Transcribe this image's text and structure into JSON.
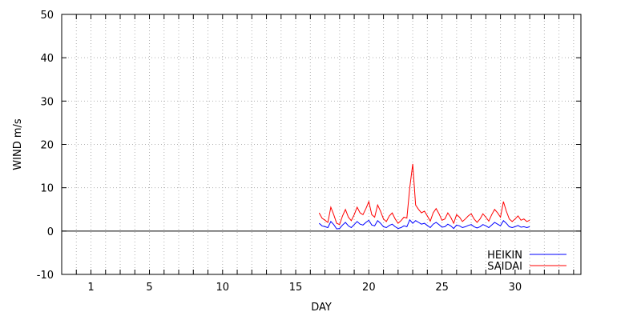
{
  "chart_data": {
    "type": "line",
    "xlabel": "DAY",
    "ylabel": "WIND m/s",
    "xlim": [
      -1,
      34.5
    ],
    "ylim": [
      -10,
      50
    ],
    "x_ticks": [
      1,
      5,
      10,
      15,
      20,
      25,
      30
    ],
    "y_ticks": [
      -10,
      0,
      10,
      20,
      30,
      40,
      50
    ],
    "grid": true,
    "zero_line": true,
    "legend_position": "bottom-right",
    "series": [
      {
        "name": "HEIKIN",
        "color": "#0000ff",
        "x": [
          16.6,
          16.8,
          17.0,
          17.2,
          17.4,
          17.6,
          17.8,
          18.0,
          18.2,
          18.4,
          18.6,
          18.8,
          19.0,
          19.2,
          19.4,
          19.6,
          19.8,
          20.0,
          20.2,
          20.4,
          20.6,
          20.8,
          21.0,
          21.2,
          21.4,
          21.6,
          21.8,
          22.0,
          22.2,
          22.4,
          22.6,
          22.8,
          23.0,
          23.2,
          23.4,
          23.6,
          23.8,
          24.0,
          24.2,
          24.4,
          24.6,
          24.8,
          25.0,
          25.2,
          25.4,
          25.6,
          25.8,
          26.0,
          26.2,
          26.4,
          26.6,
          26.8,
          27.0,
          27.2,
          27.4,
          27.6,
          27.8,
          28.0,
          28.2,
          28.4,
          28.6,
          28.8,
          29.0,
          29.2,
          29.4,
          29.6,
          29.8,
          30.0,
          30.2,
          30.4,
          30.6,
          30.8,
          31.0
        ],
        "y": [
          1.8,
          1.2,
          1.0,
          0.8,
          2.2,
          1.5,
          0.5,
          0.6,
          1.4,
          2.0,
          1.2,
          0.8,
          1.5,
          2.2,
          1.6,
          1.4,
          2.0,
          2.5,
          1.4,
          1.2,
          2.4,
          1.8,
          1.0,
          0.8,
          1.3,
          1.6,
          1.0,
          0.6,
          0.8,
          1.2,
          1.0,
          2.6,
          1.8,
          2.4,
          2.0,
          1.6,
          1.8,
          1.3,
          0.8,
          1.6,
          2.0,
          1.5,
          0.9,
          1.0,
          1.6,
          1.2,
          0.6,
          1.4,
          1.2,
          0.8,
          1.0,
          1.3,
          1.5,
          1.0,
          0.7,
          1.0,
          1.5,
          1.2,
          0.8,
          1.4,
          2.0,
          1.6,
          1.2,
          2.4,
          1.8,
          1.0,
          0.8,
          1.0,
          1.3,
          0.9,
          1.0,
          0.8,
          1.0
        ]
      },
      {
        "name": "SAIDAI",
        "color": "#ff0000",
        "x": [
          16.6,
          16.8,
          17.0,
          17.2,
          17.4,
          17.6,
          17.8,
          18.0,
          18.2,
          18.4,
          18.6,
          18.8,
          19.0,
          19.2,
          19.4,
          19.6,
          19.8,
          20.0,
          20.2,
          20.4,
          20.6,
          20.8,
          21.0,
          21.2,
          21.4,
          21.6,
          21.8,
          22.0,
          22.2,
          22.4,
          22.6,
          22.8,
          23.0,
          23.2,
          23.4,
          23.6,
          23.8,
          24.0,
          24.2,
          24.4,
          24.6,
          24.8,
          25.0,
          25.2,
          25.4,
          25.6,
          25.8,
          26.0,
          26.2,
          26.4,
          26.6,
          26.8,
          27.0,
          27.2,
          27.4,
          27.6,
          27.8,
          28.0,
          28.2,
          28.4,
          28.6,
          28.8,
          29.0,
          29.2,
          29.4,
          29.6,
          29.8,
          30.0,
          30.2,
          30.4,
          30.6,
          30.8,
          31.0
        ],
        "y": [
          4.2,
          3.0,
          2.5,
          2.0,
          5.5,
          3.8,
          1.8,
          1.5,
          3.5,
          5.0,
          3.2,
          2.4,
          3.8,
          5.5,
          4.2,
          3.8,
          5.2,
          6.8,
          3.8,
          3.2,
          6.0,
          4.6,
          2.8,
          2.2,
          3.5,
          4.2,
          2.8,
          1.8,
          2.4,
          3.2,
          3.0,
          10.0,
          15.5,
          6.0,
          5.0,
          4.2,
          4.6,
          3.5,
          2.3,
          4.2,
          5.2,
          4.0,
          2.5,
          2.8,
          4.2,
          3.2,
          1.8,
          3.8,
          3.2,
          2.2,
          2.8,
          3.5,
          4.0,
          2.8,
          2.0,
          2.8,
          4.0,
          3.2,
          2.3,
          3.8,
          5.0,
          4.2,
          3.2,
          6.8,
          4.6,
          2.8,
          2.2,
          2.8,
          3.5,
          2.5,
          2.8,
          2.2,
          2.5
        ]
      }
    ]
  }
}
